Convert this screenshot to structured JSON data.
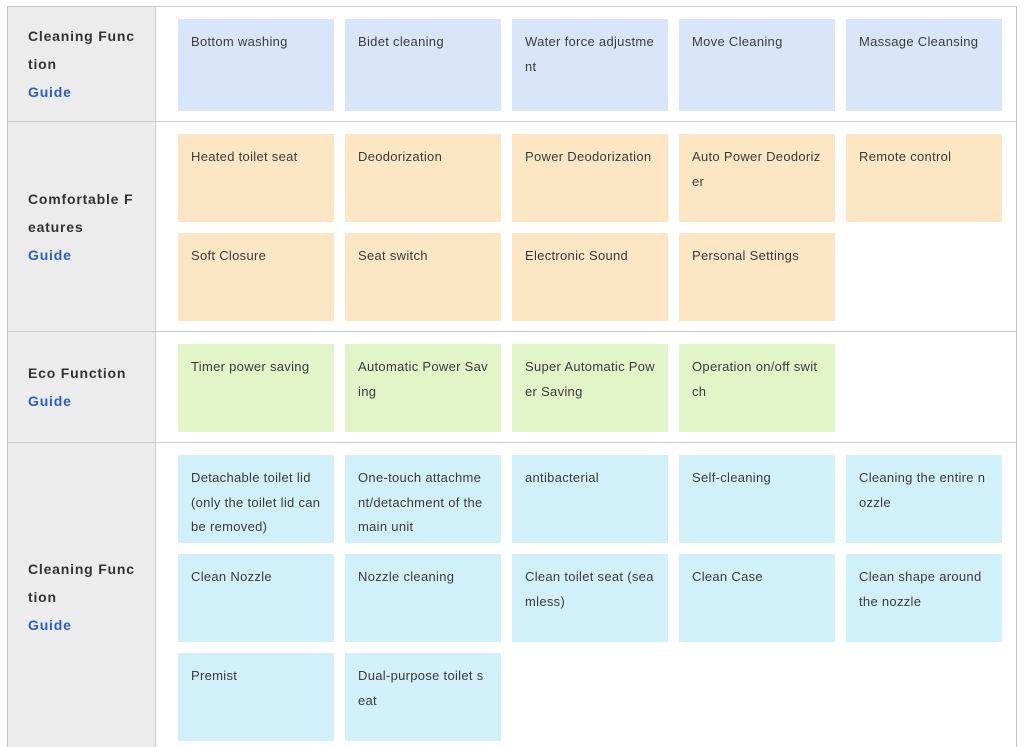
{
  "colors": {
    "blue_card": "#d9e6f9",
    "peach_card": "#fde6c3",
    "green_card": "#e3f5c8",
    "cyan_card": "#d2f0fa",
    "sidebar_bg": "#ececec",
    "row_border": "#c9c9c9",
    "outer_border": "#bfc7cb",
    "guide_link": "#2a5fc0",
    "card_text": "#3b3b3b",
    "category_text": "#333333"
  },
  "table": {
    "categories": [
      {
        "id": "cleaning-function-1",
        "label": "Cleaning Function",
        "guide_label": "Guide",
        "card_color": "#d9e6f9",
        "card_rows": [
          [
            "Bottom washing",
            "Bidet cleaning",
            "Water force adjustment",
            "Move Cleaning",
            "Massage Cleansing"
          ]
        ]
      },
      {
        "id": "comfortable-features",
        "label": "Comfortable Features",
        "guide_label": "Guide",
        "card_color": "#fde6c3",
        "card_rows": [
          [
            "Heated toilet seat",
            "Deodorization",
            "Power Deodorization",
            "Auto Power Deodorizer",
            "Remote control"
          ],
          [
            "Soft Closure",
            "Seat switch",
            "Electronic Sound",
            "Personal Settings"
          ]
        ]
      },
      {
        "id": "eco-function",
        "label": "Eco Function",
        "guide_label": "Guide",
        "card_color": "#e3f5c8",
        "card_rows": [
          [
            "Timer power saving",
            "Automatic Power Saving",
            "Super Automatic Power Saving",
            "Operation on/off switch"
          ]
        ]
      },
      {
        "id": "cleaning-function-2",
        "label": "Cleaning Function",
        "guide_label": "Guide",
        "card_color": "#d2f0fa",
        "card_rows": [
          [
            "Detachable toilet lid (only the toilet lid can be removed)",
            "One-touch attachment/detachment of the main unit",
            "antibacterial",
            "Self-cleaning",
            "Cleaning the entire nozzle"
          ],
          [
            "Clean Nozzle",
            "Nozzle cleaning",
            "Clean toilet seat (seamless)",
            "Clean Case",
            "Clean shape around the nozzle"
          ],
          [
            "Premist",
            "Dual-purpose toilet seat"
          ]
        ]
      }
    ]
  }
}
